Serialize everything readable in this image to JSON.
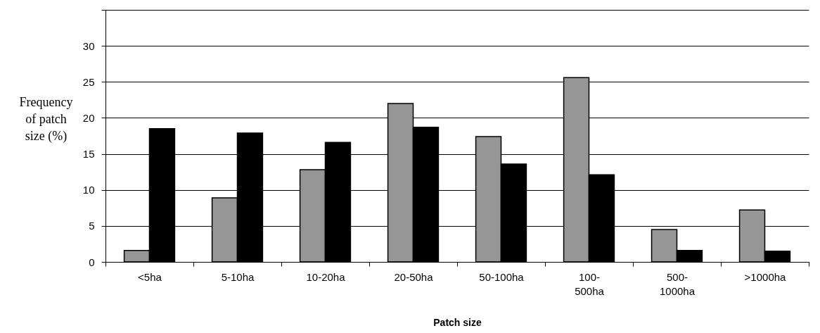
{
  "chart_data": {
    "type": "bar",
    "xlabel": "Patch size",
    "ylabel": "Frequency of patch size (%)",
    "categories": [
      "<5ha",
      "5-10ha",
      "10-20ha",
      "20-50ha",
      "50-100ha",
      "100-500ha",
      "500-1000ha",
      ">1000ha"
    ],
    "series": [
      {
        "color": "#969696",
        "values": [
          1.6,
          8.9,
          12.8,
          22.0,
          17.4,
          25.6,
          4.5,
          7.2
        ]
      },
      {
        "color": "#000000",
        "values": [
          18.5,
          17.9,
          16.6,
          18.7,
          13.6,
          12.1,
          1.6,
          1.5
        ]
      }
    ],
    "ylim": [
      0,
      35
    ],
    "yticks": [
      0,
      5,
      10,
      15,
      20,
      25,
      30,
      {
        "value": 35,
        "label": null
      }
    ],
    "grid": "y"
  }
}
